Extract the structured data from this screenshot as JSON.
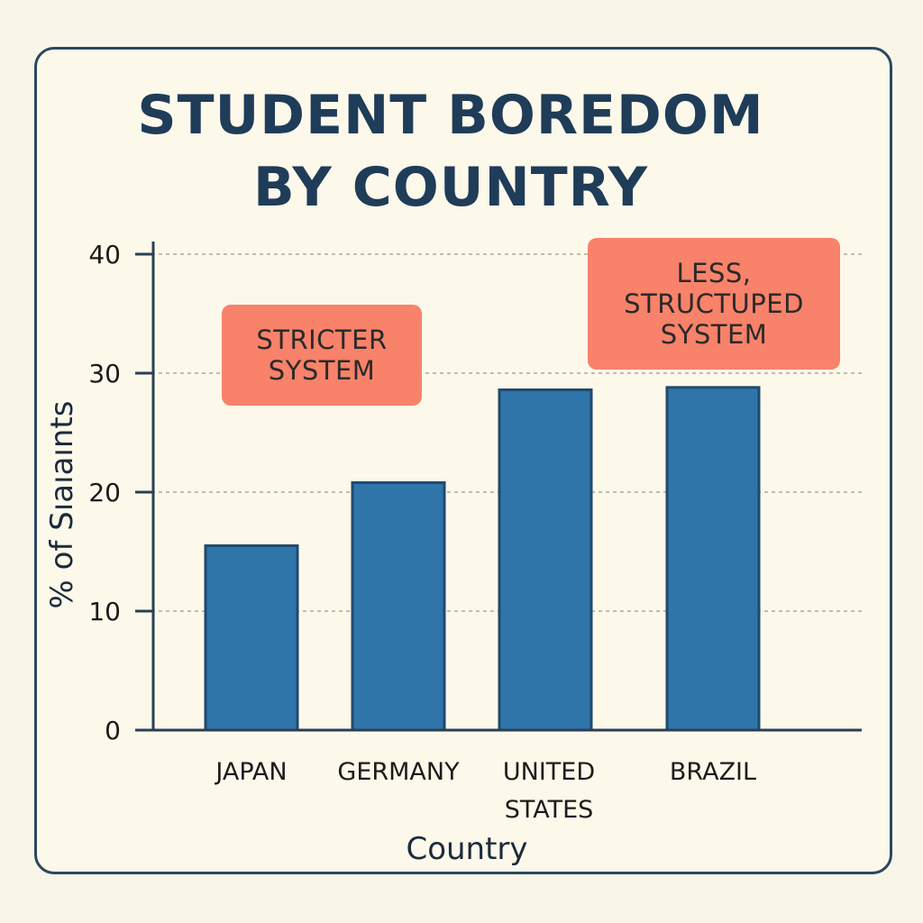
{
  "chart_data": {
    "type": "bar",
    "title": "STUDENT BOREDOM BY COUNTRY",
    "categories": [
      "JAPAN",
      "GERMANY",
      "UNITED STATES",
      "BRAZIL"
    ],
    "values": [
      15.5,
      20.8,
      28.6,
      28.8
    ],
    "xlabel": "Country",
    "ylabel": "% of Sıaıaınts",
    "ylim": [
      0,
      40
    ],
    "yticks": [
      0,
      10,
      20,
      30,
      40
    ],
    "grid": true,
    "bar_color": "#2f75aa",
    "annotations": [
      {
        "text": "STRICTER SYSTEM",
        "color": "#f8826a"
      },
      {
        "text": "LESS, STRUCTUPED SYSTEM",
        "color": "#f8826a"
      }
    ]
  }
}
